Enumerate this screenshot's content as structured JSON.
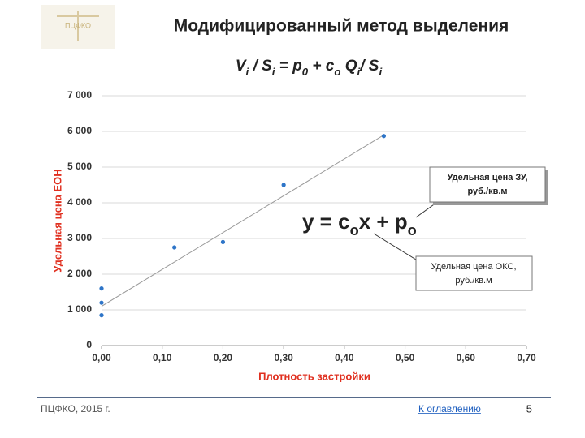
{
  "chart_data": {
    "type": "scatter",
    "title": "Модифицированный метод выделения",
    "formula": [
      {
        "text": "V"
      },
      {
        "sub": "i"
      },
      {
        "text": " / S"
      },
      {
        "sub": "i"
      },
      {
        "text": " = p"
      },
      {
        "sub": "0"
      },
      {
        "text": " + c"
      },
      {
        "sub": "o"
      },
      {
        "text": " Q"
      },
      {
        "sub": "i"
      },
      {
        "text": "/ S"
      },
      {
        "sub": "i"
      }
    ],
    "x_label": "Плотность застройки",
    "y_label": "Удельная цена ЕОН",
    "series": [
      {
        "name": "Удельная цена ЕОН",
        "color": "#2e75c8",
        "x": [
          0,
          0,
          0,
          0.12,
          0.2,
          0.3,
          0.465
        ],
        "values": [
          1600,
          1200,
          850,
          2750,
          2900,
          4500,
          5870
        ]
      }
    ],
    "trendline": {
      "color": "#999999",
      "x": [
        0,
        0.465
      ],
      "values": [
        1100,
        5900
      ]
    },
    "xlim": [
      0,
      0.7
    ],
    "xticks": [
      {
        "value": 0,
        "label": "0,00"
      },
      {
        "value": 0.1,
        "label": "0,10"
      },
      {
        "value": 0.2,
        "label": "0,20"
      },
      {
        "value": 0.3,
        "label": "0,30"
      },
      {
        "value": 0.4,
        "label": "0,40"
      },
      {
        "value": 0.5,
        "label": "0,50"
      },
      {
        "value": 0.6,
        "label": "0,60"
      },
      {
        "value": 0.7,
        "label": "0,70"
      }
    ],
    "ylim": [
      0,
      7000
    ],
    "yticks": [
      0,
      {
        "value": 1000,
        "label": "1 000"
      },
      {
        "value": 2000,
        "label": "2 000"
      },
      {
        "value": 3000,
        "label": "3 000"
      },
      {
        "value": 4000,
        "label": "4 000"
      },
      {
        "value": 5000,
        "label": "5 000"
      },
      {
        "value": 6000,
        "label": "6 000"
      },
      {
        "value": 7000,
        "label": "7 000"
      }
    ],
    "grid": true,
    "equation": [
      {
        "text": "y = c"
      },
      {
        "sub": "o"
      },
      {
        "text": "x + p"
      },
      {
        "sub": "o"
      }
    ],
    "callouts": [
      [
        "Удельная цена ЗУ,",
        "руб./кв.м"
      ],
      [
        "Удельная цена ОКС,",
        "руб./кв.м"
      ]
    ]
  },
  "slide": {
    "logo": "ПЦФКО",
    "footer": "ПЦФКО, 2015 г.",
    "link": "К оглавлению",
    "page": "5"
  }
}
